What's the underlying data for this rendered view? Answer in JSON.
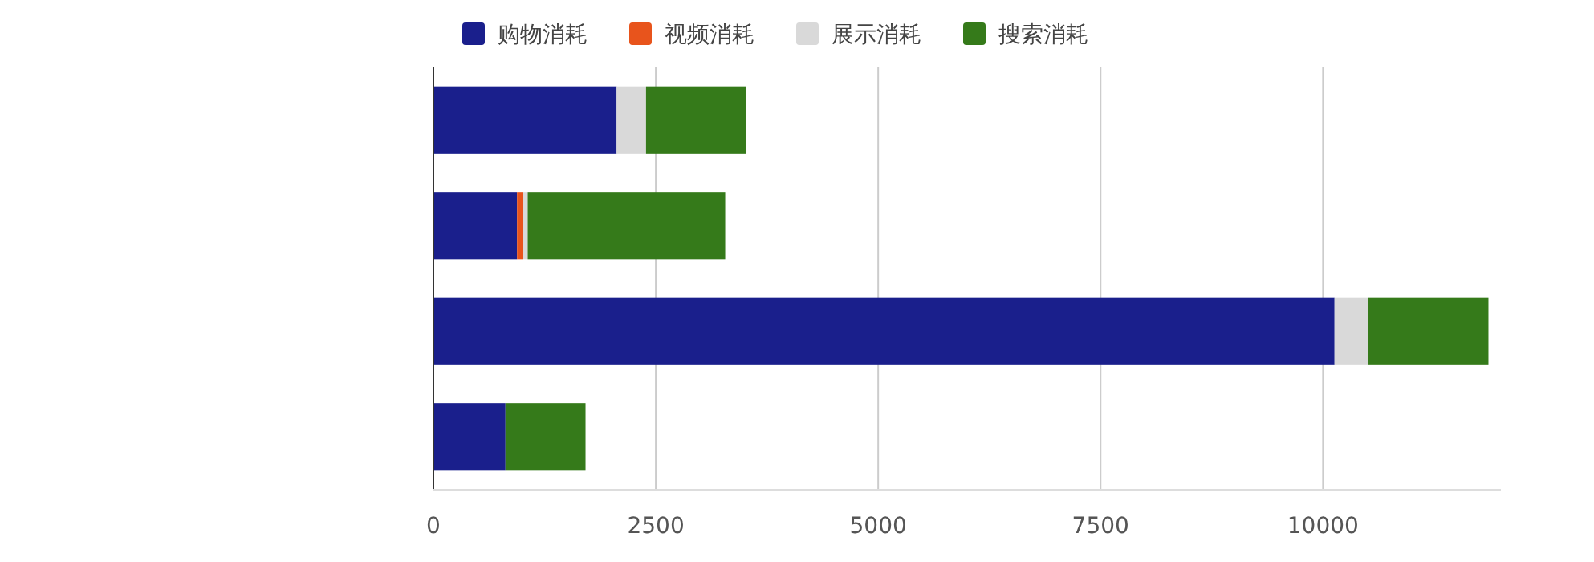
{
  "chart_data": {
    "type": "bar",
    "orientation": "horizontal",
    "stacked": true,
    "categories": [
      null,
      null,
      null,
      null
    ],
    "series": [
      {
        "name": "购物消耗",
        "color": "#1a1f8c",
        "values": [
          2060,
          940,
          10130,
          810
        ]
      },
      {
        "name": "视频消耗",
        "color": "#e8541c",
        "values": [
          0,
          70,
          0,
          0
        ]
      },
      {
        "name": "展示消耗",
        "color": "#d9d9d9",
        "values": [
          330,
          50,
          380,
          0
        ]
      },
      {
        "name": "搜索消耗",
        "color": "#357a1a",
        "values": [
          1120,
          2220,
          1350,
          900
        ]
      }
    ],
    "xlim": [
      0,
      12000
    ],
    "xticks": [
      0,
      2500,
      5000,
      7500,
      10000
    ],
    "grid": "x",
    "legend": "top"
  }
}
